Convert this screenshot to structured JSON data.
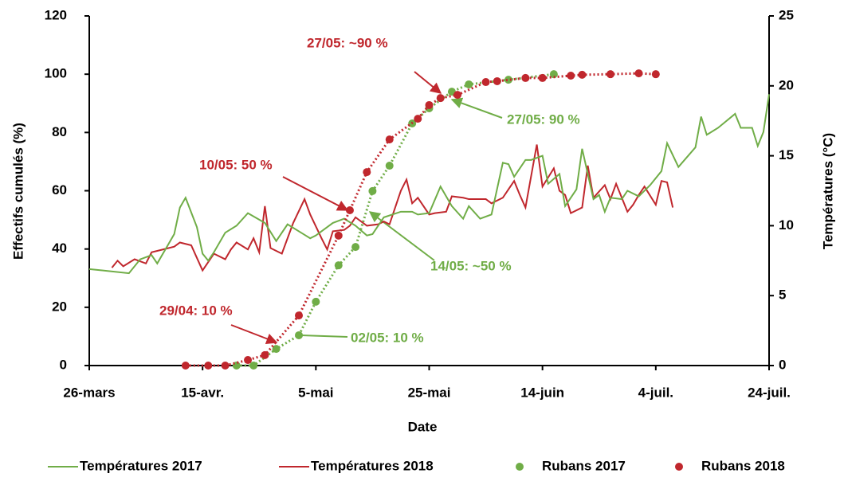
{
  "chart_data": {
    "type": "line",
    "x_label": "Date",
    "y_label": "Effectifs cumulés (%)",
    "y2_label": "Températures (°C)",
    "xlim": [
      0,
      120
    ],
    "xticks": [
      {
        "value": 0,
        "label": "26-mars"
      },
      {
        "value": 20,
        "label": "15-avr."
      },
      {
        "value": 40,
        "label": "5-mai"
      },
      {
        "value": 60,
        "label": "25-mai"
      },
      {
        "value": 80,
        "label": "14-juin"
      },
      {
        "value": 100,
        "label": "4-juil."
      },
      {
        "value": 120,
        "label": "24-juil."
      }
    ],
    "ylim": [
      0,
      120
    ],
    "yticks": [
      0,
      20,
      40,
      60,
      80,
      100,
      120
    ],
    "y2lim": [
      0,
      25
    ],
    "y2ticks": [
      0,
      5,
      10,
      15,
      20,
      25
    ],
    "series": [
      {
        "name": "Températures 2017",
        "type": "line",
        "axis": "y2",
        "color": "#70ad47",
        "x": [
          0,
          7,
          9,
          11,
          12,
          14,
          15,
          16,
          17,
          19,
          20,
          21,
          22,
          24,
          26,
          28,
          31,
          33,
          35,
          37,
          39,
          40,
          43,
          45,
          47,
          49,
          50,
          52,
          55,
          57,
          58,
          60,
          62,
          64,
          66,
          67,
          69,
          71,
          73,
          74,
          75,
          77,
          78,
          80,
          81,
          83,
          84,
          86,
          87,
          89,
          90,
          91,
          92,
          94,
          95,
          97,
          99,
          101,
          102,
          104,
          107,
          108,
          109,
          111,
          114,
          115,
          117,
          118,
          119,
          120
        ],
        "values": [
          6.9,
          6.6,
          7.6,
          7.9,
          7.3,
          8.7,
          9.4,
          11.3,
          12.0,
          9.9,
          8.0,
          7.5,
          8.1,
          9.5,
          10.0,
          10.9,
          10.2,
          8.9,
          10.1,
          9.6,
          9.1,
          9.3,
          10.2,
          10.5,
          10.0,
          9.3,
          9.4,
          10.6,
          11.0,
          11.0,
          10.8,
          10.9,
          12.8,
          11.4,
          10.5,
          11.4,
          10.5,
          10.8,
          14.5,
          14.4,
          13.5,
          14.7,
          14.7,
          15.0,
          13.0,
          13.7,
          11.4,
          12.6,
          15.5,
          11.9,
          12.2,
          11.0,
          12.0,
          11.9,
          12.5,
          12.1,
          12.9,
          13.9,
          15.9,
          14.2,
          15.6,
          17.8,
          16.5,
          17.0,
          18.0,
          17.0,
          17.0,
          15.7,
          16.7,
          19.4
        ]
      },
      {
        "name": "Températures 2018",
        "type": "line",
        "axis": "y2",
        "color": "#c0272d",
        "x": [
          4,
          5,
          6,
          8,
          10,
          11,
          13,
          15,
          16,
          18,
          19,
          20,
          22,
          24,
          25,
          26,
          28,
          29,
          30,
          31,
          32,
          34,
          36,
          38,
          39,
          41,
          42,
          43,
          45,
          46,
          47,
          49,
          51,
          52,
          53,
          55,
          56,
          57,
          58,
          60,
          61,
          63,
          64,
          66,
          67,
          69,
          70,
          71,
          73,
          75,
          76,
          77,
          79,
          80,
          82,
          83,
          84,
          85,
          87,
          88,
          89,
          91,
          92,
          93,
          95,
          96,
          97,
          98,
          100,
          101,
          102,
          103
        ],
        "values": [
          7.0,
          7.5,
          7.1,
          7.6,
          7.3,
          8.1,
          8.3,
          8.5,
          8.8,
          8.6,
          7.7,
          6.8,
          8.0,
          7.6,
          8.3,
          8.8,
          8.3,
          9.1,
          8.1,
          11.4,
          8.4,
          8.0,
          10.2,
          11.9,
          10.8,
          9.1,
          8.3,
          9.6,
          9.7,
          10.0,
          10.6,
          10.0,
          10.1,
          10.3,
          10.1,
          12.5,
          13.3,
          11.6,
          12.0,
          10.8,
          10.9,
          11.0,
          12.1,
          12.0,
          11.9,
          11.9,
          11.9,
          11.6,
          12.0,
          13.2,
          12.2,
          11.3,
          15.8,
          12.8,
          14.1,
          12.5,
          12.2,
          10.9,
          11.3,
          14.3,
          12.0,
          12.9,
          11.9,
          13.0,
          11.0,
          11.5,
          12.2,
          12.8,
          11.5,
          13.2,
          13.1,
          11.3
        ]
      },
      {
        "name": "Rubans 2017",
        "type": "scatter",
        "color": "#70ad47",
        "x": [
          26,
          29,
          33,
          37,
          40,
          44,
          47,
          50,
          53,
          57,
          60,
          64,
          67,
          74,
          82
        ],
        "values": [
          0,
          0,
          5.7,
          10.4,
          21.9,
          34.4,
          40.7,
          59.9,
          68.6,
          83.1,
          88.3,
          94,
          96.5,
          98.1,
          100
        ]
      },
      {
        "name": "Rubans 2018",
        "type": "scatter",
        "color": "#c0272d",
        "x": [
          17,
          21,
          24,
          28,
          31,
          37,
          44,
          46,
          49,
          53,
          58,
          60,
          62,
          65,
          70,
          72,
          77,
          80,
          85,
          87,
          92,
          97,
          100
        ],
        "values": [
          0,
          0,
          0,
          1.9,
          3.6,
          17.2,
          44.6,
          53.3,
          66.4,
          77.6,
          84.7,
          89.4,
          91.8,
          92.9,
          97.3,
          97.6,
          98.7,
          98.7,
          99.5,
          99.8,
          100,
          100.3,
          100
        ]
      }
    ],
    "annotations": [
      {
        "text": "27/05: ~90 %",
        "color": "#c0272d"
      },
      {
        "text": "10/05: 50 %",
        "color": "#c0272d"
      },
      {
        "text": "29/04: 10 %",
        "color": "#c0272d"
      },
      {
        "text": "27/05: 90 %",
        "color": "#70ad47"
      },
      {
        "text": "14/05: ~50 %",
        "color": "#70ad47"
      },
      {
        "text": "02/05: 10 %",
        "color": "#70ad47"
      }
    ]
  }
}
